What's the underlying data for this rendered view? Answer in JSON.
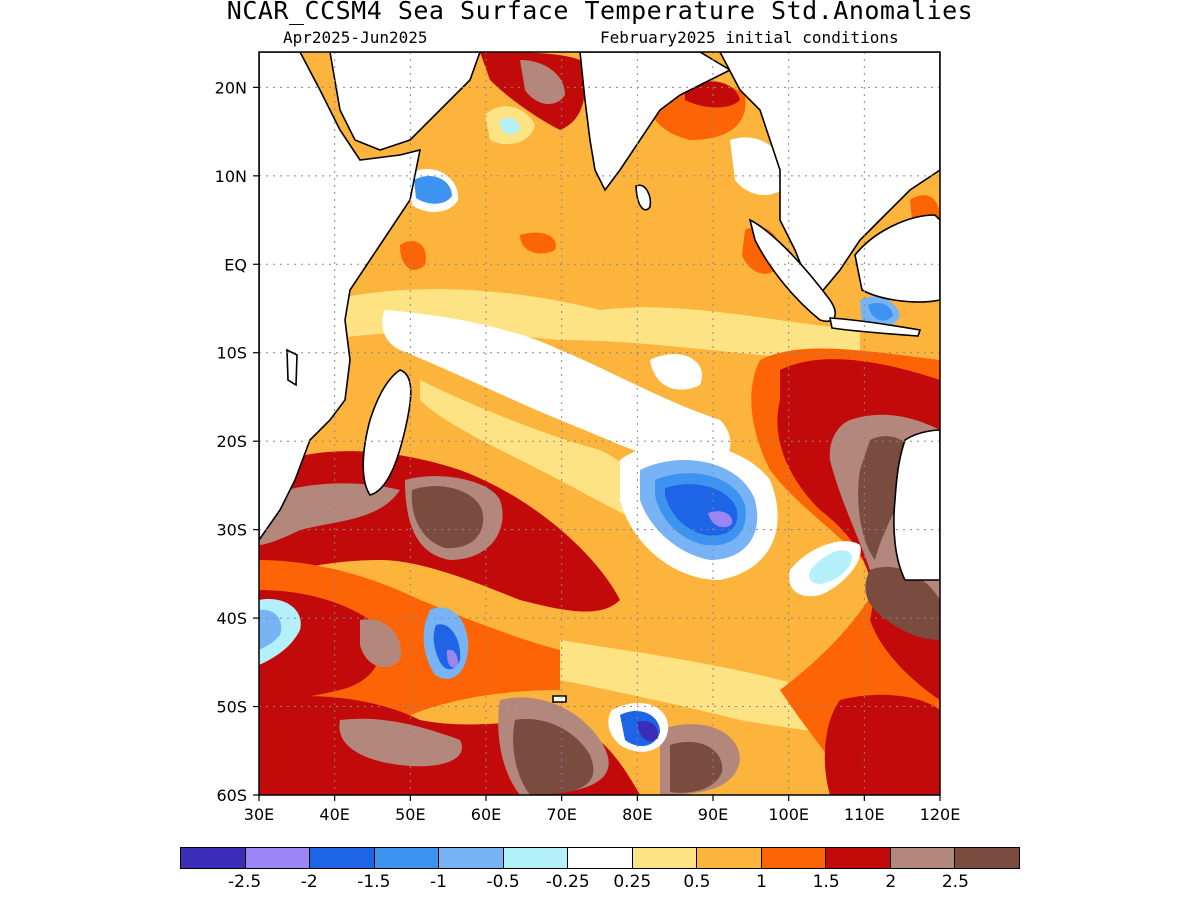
{
  "title": "NCAR_CCSM4 Sea Surface Temperature Std.Anomalies",
  "subtitle_left": "Apr2025-Jun2025",
  "subtitle_right": "February2025 initial conditions",
  "map": {
    "region": "Indian Ocean",
    "lon_range": [
      30,
      120
    ],
    "lat_range": [
      -60,
      24
    ],
    "lat_labels": [
      "20N",
      "10N",
      "EQ",
      "10S",
      "20S",
      "30S",
      "40S",
      "50S",
      "60S"
    ],
    "lon_labels": [
      "30E",
      "40E",
      "50E",
      "60E",
      "70E",
      "80E",
      "90E",
      "100E",
      "110E",
      "120E"
    ],
    "grid": true,
    "land_color": "#ffffff",
    "coastline_color": "#000000",
    "anomaly_features": [
      {
        "description": "strong positive anomaly belt",
        "lon": [
          30,
          80
        ],
        "lat": [
          -55,
          -20
        ],
        "value": 2.5
      },
      {
        "description": "negative anomaly core",
        "lon": [
          85,
          95
        ],
        "lat": [
          -33,
          -23
        ],
        "value": -2.0
      },
      {
        "description": "positive anomaly off W Australia",
        "lon": [
          108,
          120
        ],
        "lat": [
          -45,
          -10
        ],
        "value": 2.5
      },
      {
        "description": "negative anomaly",
        "lon": [
          53,
          57
        ],
        "lat": [
          -48,
          -40
        ],
        "value": -1.5
      },
      {
        "description": "negative anomaly",
        "lon": [
          78,
          84
        ],
        "lat": [
          -56,
          -50
        ],
        "value": -2.0
      },
      {
        "description": "near-neutral band",
        "lon": [
          45,
          100
        ],
        "lat": [
          -25,
          -5
        ],
        "value": 0.0
      }
    ]
  },
  "colorbar": {
    "colors": [
      "#3b2db8",
      "#9c86f5",
      "#1e64e6",
      "#3c94f0",
      "#78b4f5",
      "#b4f0fa",
      "#ffffff",
      "#fee384",
      "#fcb43c",
      "#fc6406",
      "#c30a0a",
      "#b4877d",
      "#7a4b3f"
    ],
    "labels": [
      "-2.5",
      "-2",
      "-1.5",
      "-1",
      "-0.5",
      "-0.25",
      "0.25",
      "0.5",
      "1",
      "1.5",
      "2",
      "2.5"
    ]
  }
}
